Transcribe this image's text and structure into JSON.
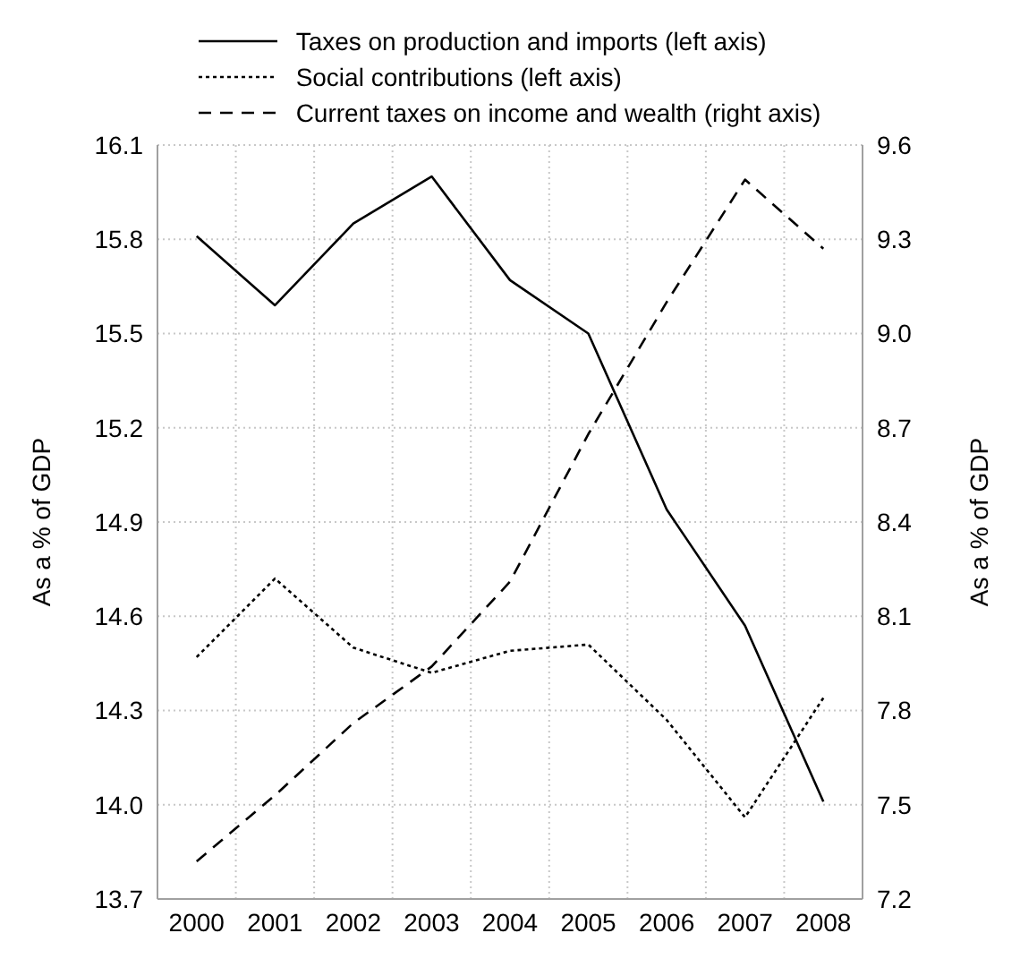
{
  "chart_data": {
    "type": "line",
    "categories": [
      "2000",
      "2001",
      "2002",
      "2003",
      "2004",
      "2005",
      "2006",
      "2007",
      "2008"
    ],
    "series": [
      {
        "name": "Taxes on production and imports (left axis)",
        "color": "#000000",
        "line_style": "solid",
        "values": [
          15.81,
          15.59,
          15.85,
          16.0,
          15.67,
          15.5,
          14.94,
          14.57,
          14.01
        ]
      },
      {
        "name": "Social contributions (left axis)",
        "color": "#000000",
        "line_style": "dotted",
        "values": [
          14.47,
          14.72,
          14.5,
          14.42,
          14.49,
          14.51,
          14.27,
          13.96,
          14.34
        ]
      },
      {
        "name": "Current taxes on income and wealth (right axis)",
        "color": "#000000",
        "line_style": "dashed",
        "axis": "y2",
        "values": [
          7.32,
          7.53,
          7.76,
          7.94,
          8.21,
          8.68,
          9.1,
          9.49,
          9.27
        ]
      }
    ],
    "ylabel": "As a % of GDP",
    "y2label": "As a % of GDP",
    "ylim": [
      13.7,
      16.1
    ],
    "yticks": [
      13.7,
      {
        "value": 14,
        "label": "14.0"
      },
      14.3,
      14.6,
      14.9,
      15.2,
      15.5,
      15.8,
      16.1
    ],
    "y2lim": [
      7.2,
      9.6
    ],
    "y2ticks": [
      7.2,
      7.5,
      7.8,
      8.1,
      8.4,
      8.7,
      {
        "value": 9,
        "label": "9.0"
      },
      9.3,
      9.6
    ],
    "grid": true,
    "legend": "top",
    "marker": "none"
  }
}
